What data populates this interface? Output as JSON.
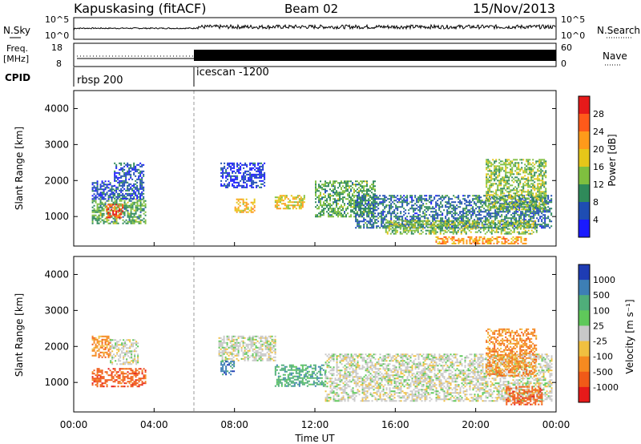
{
  "header": {
    "title": "Kapuskasing (fitACF)",
    "beam": "Beam 02",
    "date": "15/Nov/2013"
  },
  "noise_panel": {
    "left_label": "N.Sky",
    "right_label": "N.Search",
    "left_ticks": [
      "10^5",
      "10^0"
    ],
    "right_ticks": [
      "10^5",
      "10^0"
    ]
  },
  "freq_panel": {
    "left_label_1": "Freq.",
    "left_label_2": "[MHz]",
    "left_ticks": [
      "18",
      "8"
    ],
    "right_label": "Nave",
    "right_ticks": [
      "60",
      "0"
    ]
  },
  "cpid_panel": {
    "label": "CPID",
    "segments": [
      {
        "name": "rbsp 200",
        "start_hour": 0
      },
      {
        "name": "icescan -1200",
        "start_hour": 6
      }
    ]
  },
  "x_axis": {
    "title": "Time UT",
    "ticks": [
      "00:00",
      "04:00",
      "08:00",
      "12:00",
      "16:00",
      "20:00",
      "00:00"
    ]
  },
  "power_panel": {
    "ylabel": "Slant Range [km]",
    "yticks": [
      "1000",
      "2000",
      "3000",
      "4000"
    ],
    "colorbar_label": "Power [dB]",
    "colorbar_ticks": [
      "4",
      "8",
      "12",
      "16",
      "20",
      "24",
      "28"
    ],
    "colors": [
      "#1a1aff",
      "#1e4db3",
      "#2f8a5a",
      "#7fbf3f",
      "#e6c619",
      "#ff9a1a",
      "#ff5a1a",
      "#e61a1a"
    ]
  },
  "velocity_panel": {
    "ylabel": "Slant Range [km]",
    "yticks": [
      "1000",
      "2000",
      "3000",
      "4000"
    ],
    "colorbar_label": "Velocity [m s⁻¹]",
    "colorbar_ticks": [
      "1000",
      "500",
      "100",
      "25",
      "-25",
      "-100",
      "-500",
      "-1000"
    ],
    "colors": [
      "#1e3cb4",
      "#3d7fb5",
      "#4fae7a",
      "#5fc85a",
      "#c8c8c8",
      "#f0c040",
      "#f58a20",
      "#f05a18",
      "#e61a1a"
    ]
  },
  "chart_data": [
    {
      "type": "heatmap",
      "name_key": "power",
      "xlim_hours": [
        0,
        24
      ],
      "ylim_km": [
        180,
        4500
      ],
      "regions": [
        {
          "x0": 0.9,
          "x1": 3.6,
          "y0": 800,
          "y1": 1500,
          "value": 12
        },
        {
          "x0": 1.6,
          "x1": 2.4,
          "y0": 950,
          "y1": 1350,
          "value": 26
        },
        {
          "x0": 0.9,
          "x1": 2.0,
          "y0": 1500,
          "y1": 2000,
          "value": 6
        },
        {
          "x0": 2.0,
          "x1": 3.5,
          "y0": 1500,
          "y1": 2500,
          "value": 6
        },
        {
          "x0": 7.3,
          "x1": 9.5,
          "y0": 1800,
          "y1": 2500,
          "value": 4
        },
        {
          "x0": 8.0,
          "x1": 9.0,
          "y0": 1100,
          "y1": 1500,
          "value": 20
        },
        {
          "x0": 10.0,
          "x1": 11.5,
          "y0": 1200,
          "y1": 1600,
          "value": 18
        },
        {
          "x0": 12.0,
          "x1": 15.0,
          "y0": 1000,
          "y1": 2000,
          "value": 12
        },
        {
          "x0": 14.0,
          "x1": 23.8,
          "y0": 700,
          "y1": 1600,
          "value": 8
        },
        {
          "x0": 15.5,
          "x1": 23.0,
          "y0": 500,
          "y1": 900,
          "value": 14
        },
        {
          "x0": 18.0,
          "x1": 22.5,
          "y0": 250,
          "y1": 450,
          "value": 22
        },
        {
          "x0": 20.5,
          "x1": 23.5,
          "y0": 1200,
          "y1": 2600,
          "value": 14
        }
      ]
    },
    {
      "type": "heatmap",
      "name_key": "velocity",
      "xlim_hours": [
        0,
        24
      ],
      "ylim_km": [
        180,
        4500
      ],
      "regions": [
        {
          "x0": 0.9,
          "x1": 3.6,
          "y0": 900,
          "y1": 1400,
          "value": -500
        },
        {
          "x0": 0.9,
          "x1": 1.8,
          "y0": 1700,
          "y1": 2300,
          "value": -100
        },
        {
          "x0": 1.8,
          "x1": 3.2,
          "y0": 1500,
          "y1": 2200,
          "value": 0
        },
        {
          "x0": 7.2,
          "x1": 10.0,
          "y0": 1600,
          "y1": 2300,
          "value": 0
        },
        {
          "x0": 7.3,
          "x1": 8.0,
          "y0": 1200,
          "y1": 1600,
          "value": 500
        },
        {
          "x0": 10.0,
          "x1": 12.5,
          "y0": 900,
          "y1": 1500,
          "value": 100
        },
        {
          "x0": 12.5,
          "x1": 23.8,
          "y0": 500,
          "y1": 1800,
          "value": 0
        },
        {
          "x0": 21.5,
          "x1": 23.3,
          "y0": 400,
          "y1": 900,
          "value": -500
        },
        {
          "x0": 20.5,
          "x1": 23.0,
          "y0": 1200,
          "y1": 2500,
          "value": -100
        }
      ]
    }
  ]
}
